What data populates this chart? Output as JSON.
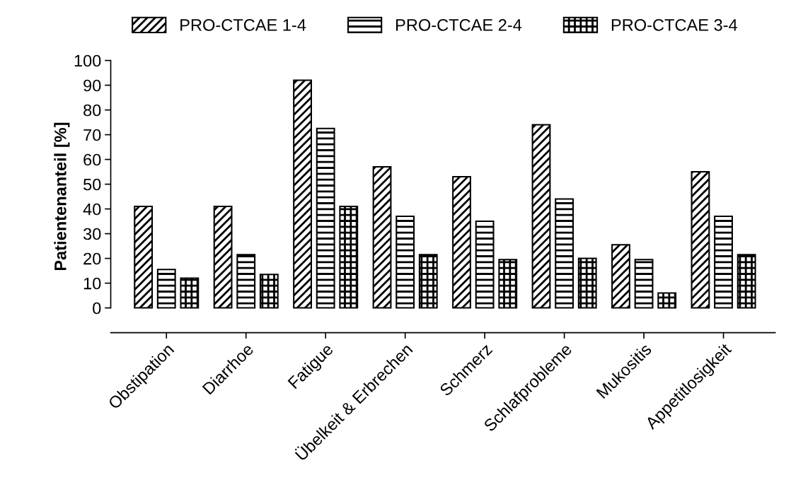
{
  "chart_data": {
    "type": "bar",
    "ylabel": "Patientenanteil [%]",
    "categories": [
      "Obstipation",
      "Diarrhoe",
      "Fatigue",
      "Übelkeit & Erbrechen",
      "Schmerz",
      "Schlafprobleme",
      "Mukositis",
      "Appetitlosigkeit"
    ],
    "series": [
      {
        "name": "PRO-CTCAE 1-4",
        "color": "#000000",
        "values": [
          41,
          41,
          92,
          57,
          53,
          74,
          25.5,
          55
        ]
      },
      {
        "name": "PRO-CTCAE 2-4",
        "color": "#000000",
        "values": [
          15.5,
          21.5,
          72.5,
          37,
          35,
          44,
          19.5,
          37
        ]
      },
      {
        "name": "PRO-CTCAE 3-4",
        "color": "#000000",
        "values": [
          12,
          13.5,
          41,
          21.5,
          19.5,
          20,
          6,
          21.5
        ]
      }
    ],
    "ylim": [
      -10,
      100
    ],
    "yticks": [
      0,
      10,
      20,
      30,
      40,
      50,
      60,
      70,
      80,
      90,
      100
    ],
    "legend": "top",
    "grid": false
  }
}
